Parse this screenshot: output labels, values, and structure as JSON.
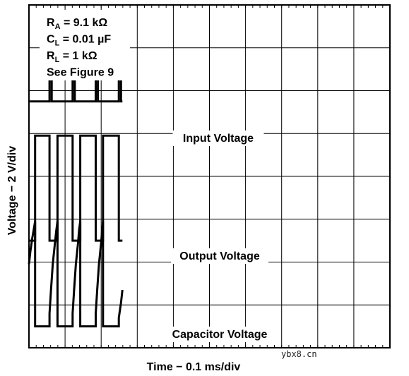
{
  "chart_data": {
    "type": "line",
    "title": "",
    "xlabel": "Time − 0.1 ms/div",
    "ylabel": "Voltage − 2 V/div",
    "grid": true,
    "x_divisions": 10,
    "y_divisions": 8,
    "annotations": [
      {
        "name": "RA",
        "text": "R",
        "sub": "A",
        "rest": " = 9.1 kΩ"
      },
      {
        "name": "CL",
        "text": "C",
        "sub": "L",
        "rest": " = 0.01 µF"
      },
      {
        "name": "RL",
        "text": "R",
        "sub": "L",
        "rest": " = 1 kΩ"
      },
      {
        "name": "see-figure",
        "text": "See Figure 9",
        "sub": "",
        "rest": ""
      }
    ],
    "series": [
      {
        "name": "Input Voltage",
        "points": [
          [
            0,
            0
          ],
          [
            2.85,
            0
          ],
          [
            2.85,
            1.35
          ],
          [
            3.15,
            1.35
          ],
          [
            3.15,
            0
          ],
          [
            6.05,
            0
          ],
          [
            6.05,
            1.35
          ],
          [
            6.35,
            1.35
          ],
          [
            6.35,
            0
          ],
          [
            9.25,
            0
          ],
          [
            9.25,
            1.35
          ],
          [
            9.55,
            1.35
          ],
          [
            9.55,
            0
          ],
          [
            12.45,
            0
          ],
          [
            12.45,
            1.35
          ],
          [
            12.75,
            1.35
          ],
          [
            12.75,
            0
          ],
          [
            12.95,
            0
          ]
        ]
      },
      {
        "name": "Output Voltage",
        "points": [
          [
            0,
            0
          ],
          [
            0.85,
            0
          ],
          [
            0.85,
            2.45
          ],
          [
            2.85,
            2.45
          ],
          [
            2.85,
            0
          ],
          [
            3.95,
            0
          ],
          [
            3.95,
            2.45
          ],
          [
            6.05,
            2.45
          ],
          [
            6.05,
            0
          ],
          [
            7.1,
            0
          ],
          [
            7.1,
            2.45
          ],
          [
            9.25,
            2.45
          ],
          [
            9.25,
            0
          ],
          [
            10.25,
            0
          ],
          [
            10.25,
            2.45
          ],
          [
            12.45,
            2.45
          ],
          [
            12.45,
            0
          ],
          [
            12.95,
            0
          ]
        ]
      },
      {
        "name": "Capacitor Voltage",
        "points": [
          [
            0,
            1.45
          ],
          [
            0.2,
            1.75
          ],
          [
            0.45,
            2.05
          ],
          [
            0.7,
            2.3
          ],
          [
            0.85,
            2.45
          ],
          [
            0.85,
            0
          ],
          [
            2.85,
            0
          ],
          [
            2.85,
            0.3
          ],
          [
            3.05,
            0.85
          ],
          [
            3.3,
            1.45
          ],
          [
            3.6,
            1.95
          ],
          [
            3.8,
            2.25
          ],
          [
            3.95,
            2.45
          ],
          [
            3.95,
            0
          ],
          [
            6.05,
            0
          ],
          [
            6.05,
            0.3
          ],
          [
            6.25,
            0.85
          ],
          [
            6.5,
            1.45
          ],
          [
            6.8,
            1.95
          ],
          [
            6.95,
            2.25
          ],
          [
            7.1,
            2.45
          ],
          [
            7.1,
            0
          ],
          [
            9.25,
            0
          ],
          [
            9.25,
            0.3
          ],
          [
            9.45,
            0.85
          ],
          [
            9.7,
            1.45
          ],
          [
            10.0,
            1.95
          ],
          [
            10.15,
            2.25
          ],
          [
            10.25,
            2.45
          ],
          [
            10.25,
            0
          ],
          [
            12.45,
            0
          ],
          [
            12.45,
            0.2
          ],
          [
            12.75,
            0.55
          ],
          [
            12.95,
            0.85
          ]
        ]
      }
    ]
  },
  "watermark": "ybx8.cn"
}
